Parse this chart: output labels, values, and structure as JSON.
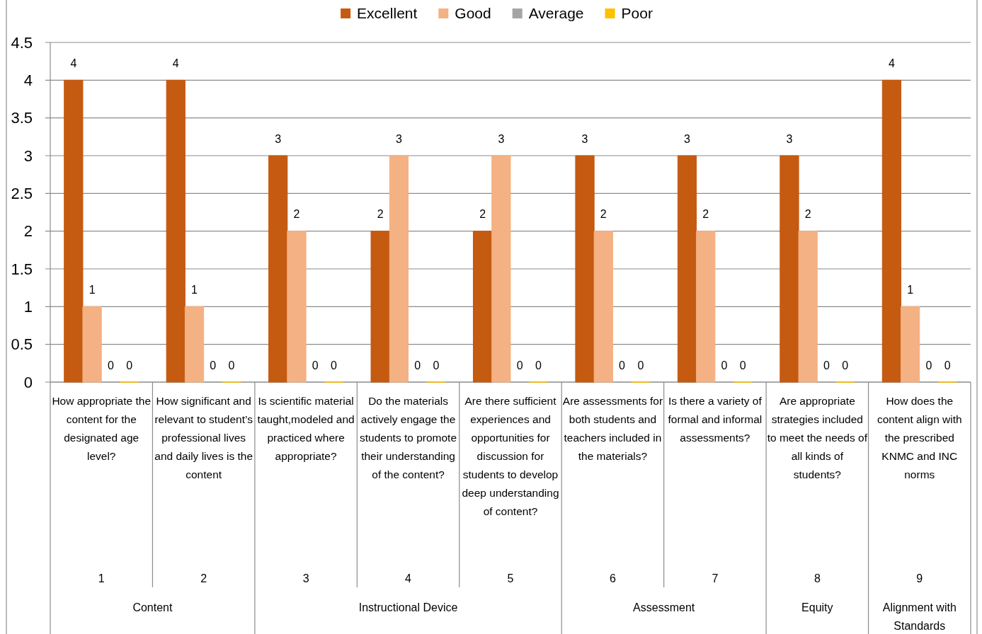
{
  "chart_data": {
    "type": "bar",
    "categories": [
      "How appropriate the content for the designated age level?",
      "How significant and relevant to student’s professional lives and daily lives is the content",
      "Is scientific material taught,modeled and practiced where appropriate?",
      "Do the materials actively engage the students to promote their understanding of the content?",
      "Are there sufficient experiences and opportunities for discussion for students to develop deep understanding of content?",
      "Are assessments for both students and teachers included in the materials?",
      "Is there a variety of formal and informal assessments?",
      "Are appropriate strategies included to meet the needs of all kinds of students?",
      "How does the content align with the prescribed KNMC and INC norms"
    ],
    "series": [
      {
        "name": "Excellent",
        "color": "#c55a11",
        "values": [
          4,
          4,
          3,
          2,
          2,
          3,
          3,
          3,
          4
        ]
      },
      {
        "name": "Good",
        "color": "#f4b183",
        "values": [
          1,
          1,
          2,
          3,
          3,
          2,
          2,
          2,
          1
        ]
      },
      {
        "name": "Average",
        "color": "#a5a5a5",
        "values": [
          0,
          0,
          0,
          0,
          0,
          0,
          0,
          0,
          0
        ]
      },
      {
        "name": "Poor",
        "color": "#ffc000",
        "values": [
          0,
          0,
          0,
          0,
          0,
          0,
          0,
          0,
          0
        ]
      }
    ],
    "ylim": [
      0,
      4.5
    ],
    "yticks": [
      0,
      0.5,
      1,
      1.5,
      2,
      2.5,
      3,
      3.5,
      4,
      4.5
    ],
    "grid": "y",
    "legend": "top",
    "data_labels": true,
    "annotations": [
      "1",
      "2",
      "3",
      "4",
      "5",
      "6",
      "7",
      "8",
      "9",
      "Content",
      "Instructional Device",
      "Assessment",
      "Equity",
      "Alignment with Standards"
    ]
  }
}
